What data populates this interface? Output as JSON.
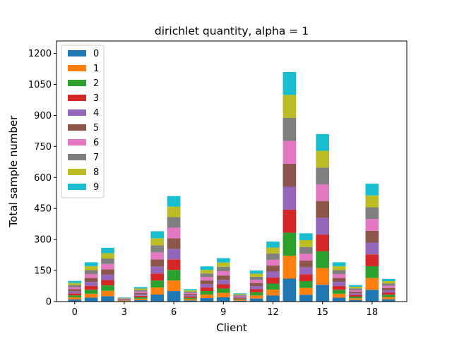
{
  "chart_data": {
    "type": "bar",
    "stacked": true,
    "title": "dirichlet quantity, alpha = 1",
    "xlabel": "Client",
    "ylabel": "Total sample number",
    "ylim": [
      0,
      1260
    ],
    "xlim": [
      -1.1,
      20.1
    ],
    "yticks": [
      0,
      150,
      300,
      450,
      600,
      750,
      900,
      1050,
      1200
    ],
    "xticks": [
      0,
      3,
      6,
      9,
      12,
      15,
      18
    ],
    "legend_position": "top-left",
    "grid": false,
    "categories": [
      0,
      1,
      2,
      3,
      4,
      5,
      6,
      7,
      8,
      9,
      10,
      11,
      12,
      13,
      14,
      15,
      16,
      17,
      18,
      19
    ],
    "series": [
      {
        "name": "0",
        "color": "#1f77b4",
        "values": [
          10,
          19,
          26,
          2,
          7,
          34,
          51,
          6,
          17,
          21,
          4,
          15,
          29,
          111,
          33,
          81,
          19,
          8,
          57,
          11
        ]
      },
      {
        "name": "1",
        "color": "#ff7f0e",
        "values": [
          10,
          19,
          26,
          2,
          7,
          34,
          51,
          6,
          17,
          21,
          4,
          15,
          29,
          111,
          33,
          81,
          19,
          8,
          57,
          11
        ]
      },
      {
        "name": "2",
        "color": "#2ca02c",
        "values": [
          10,
          19,
          26,
          2,
          7,
          34,
          51,
          6,
          17,
          21,
          4,
          15,
          29,
          111,
          33,
          81,
          19,
          8,
          57,
          11
        ]
      },
      {
        "name": "3",
        "color": "#d62728",
        "values": [
          10,
          19,
          26,
          2,
          7,
          34,
          51,
          6,
          17,
          21,
          4,
          15,
          29,
          111,
          33,
          81,
          19,
          8,
          57,
          11
        ]
      },
      {
        "name": "4",
        "color": "#9467bd",
        "values": [
          10,
          19,
          26,
          2,
          7,
          34,
          51,
          6,
          17,
          21,
          4,
          15,
          29,
          111,
          33,
          81,
          19,
          8,
          57,
          11
        ]
      },
      {
        "name": "5",
        "color": "#8c564b",
        "values": [
          10,
          19,
          26,
          2,
          7,
          34,
          51,
          6,
          17,
          21,
          4,
          15,
          29,
          111,
          33,
          81,
          19,
          8,
          57,
          11
        ]
      },
      {
        "name": "6",
        "color": "#e377c2",
        "values": [
          10,
          19,
          26,
          2,
          7,
          34,
          51,
          6,
          17,
          21,
          4,
          15,
          29,
          111,
          33,
          81,
          19,
          8,
          57,
          11
        ]
      },
      {
        "name": "7",
        "color": "#7f7f7f",
        "values": [
          10,
          19,
          26,
          2,
          7,
          34,
          51,
          6,
          17,
          21,
          4,
          15,
          29,
          111,
          33,
          81,
          19,
          8,
          57,
          11
        ]
      },
      {
        "name": "8",
        "color": "#bcbd22",
        "values": [
          10,
          19,
          26,
          2,
          7,
          34,
          51,
          6,
          17,
          21,
          4,
          15,
          29,
          111,
          33,
          81,
          19,
          8,
          57,
          11
        ]
      },
      {
        "name": "9",
        "color": "#17becf",
        "values": [
          10,
          19,
          26,
          2,
          7,
          34,
          51,
          6,
          17,
          21,
          4,
          15,
          29,
          111,
          33,
          81,
          19,
          8,
          57,
          11
        ]
      }
    ]
  }
}
